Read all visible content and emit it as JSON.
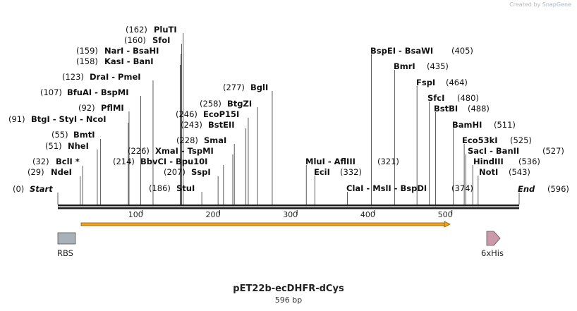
{
  "credit": {
    "prefix": "Created by ",
    "brand": "SnapGene"
  },
  "plasmid": {
    "name": "pET22b-ecDHFR-dCys",
    "length_label": "596 bp",
    "length": 596
  },
  "ruler_ticks": [
    "100",
    "200",
    "300",
    "400",
    "500"
  ],
  "ends": {
    "start": {
      "pos": "(0)",
      "label": "Start"
    },
    "end": {
      "label": "End",
      "pos": "(596)"
    }
  },
  "colors": {
    "backbone": "#1a1a1a",
    "orf_fill": "#f4a21d",
    "orf_stroke": "#8a5a00",
    "rbs": "#a9b1b8",
    "his": "#cc99aa"
  },
  "sites_left": [
    {
      "text": "(0)  Start",
      "pos": 0
    },
    {
      "text": "(29)  NdeI",
      "pos": 29
    },
    {
      "text": "(32)  BclI *",
      "pos": 32
    },
    {
      "text": "(51)  NheI",
      "pos": 51
    },
    {
      "text": "(55)  BmtI",
      "pos": 55
    },
    {
      "text": "(91)  BtgI - StyI - NcoI",
      "pos": 91
    },
    {
      "text": "(92)  PflMI",
      "pos": 92
    },
    {
      "text": "(107)  BfuAI - BspMI",
      "pos": 107
    },
    {
      "text": "(123)  DraI - PmeI",
      "pos": 123
    },
    {
      "text": "(158)  KasI - BanI",
      "pos": 158
    },
    {
      "text": "(159)  NarI - BsaHI",
      "pos": 159
    },
    {
      "text": "(160)  SfoI",
      "pos": 160
    },
    {
      "text": "(162)  PluTI",
      "pos": 162
    },
    {
      "text": "(186)  StuI",
      "pos": 186
    },
    {
      "text": "(207)  SspI",
      "pos": 207
    },
    {
      "text": "(214)  BbvCI - Bpu10I",
      "pos": 214
    },
    {
      "text": "(226)  XmaI - TspMI",
      "pos": 226
    },
    {
      "text": "(228)  SmaI",
      "pos": 228
    },
    {
      "text": "(243)  BstEII",
      "pos": 243
    },
    {
      "text": "(246)  EcoP15I",
      "pos": 246
    },
    {
      "text": "(258)  BtgZI",
      "pos": 258
    },
    {
      "text": "(277)  BglI",
      "pos": 277
    }
  ],
  "sites_right": [
    {
      "text": "MluI - AflIII  (321)",
      "pos": 321
    },
    {
      "text": "EciI  (332)",
      "pos": 332
    },
    {
      "text": "ClaI - MslI - BspDI  (374)",
      "pos": 374
    },
    {
      "text": "BspEI - BsaWI  (405)",
      "pos": 405
    },
    {
      "text": "BmrI  (435)",
      "pos": 435
    },
    {
      "text": "FspI  (464)",
      "pos": 464
    },
    {
      "text": "SfcI  (480)",
      "pos": 480
    },
    {
      "text": "BstBI  (488)",
      "pos": 488
    },
    {
      "text": "BamHI  (511)",
      "pos": 511
    },
    {
      "text": "Eco53kI  (525)",
      "pos": 525
    },
    {
      "text": "SacI - BanII  (527)",
      "pos": 527
    },
    {
      "text": "HindIII  (536)",
      "pos": 536
    },
    {
      "text": "NotI  (543)",
      "pos": 543
    },
    {
      "text": "End  (596)",
      "pos": 596
    }
  ],
  "features": [
    {
      "name": "RBS",
      "start": 0,
      "end": 24,
      "kind": "box"
    },
    {
      "name": "6xHis",
      "start": 558,
      "end": 575,
      "kind": "arrow"
    }
  ],
  "orf": {
    "start": 32,
    "end": 500
  }
}
